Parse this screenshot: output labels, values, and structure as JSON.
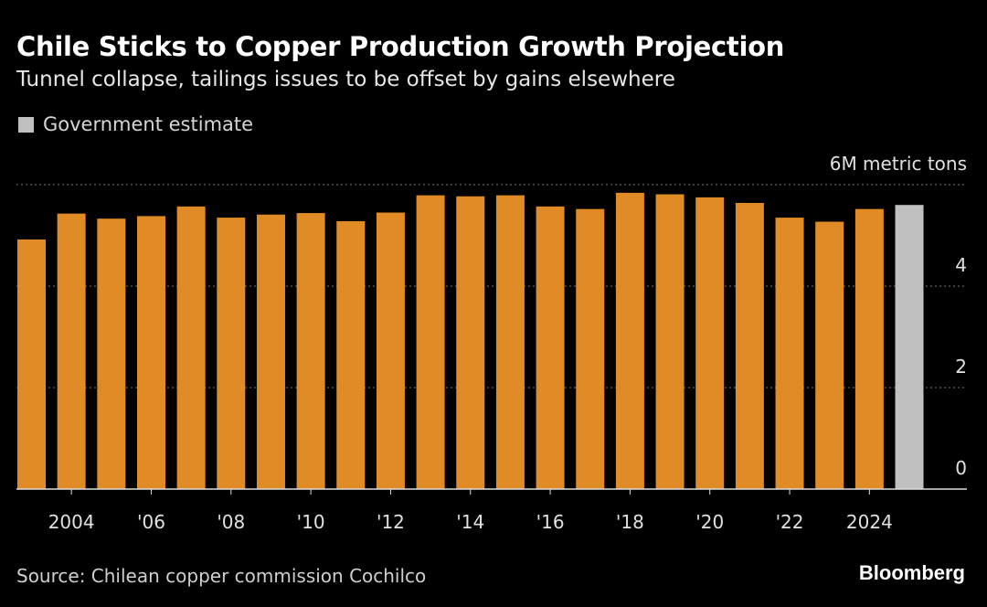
{
  "title": "Chile Sticks to Copper Production Growth Projection",
  "subtitle": "Tunnel collapse, tailings issues to be offset by gains elsewhere",
  "source": "Source: Chilean copper commission Cochilco",
  "logo": "Bloomberg",
  "colors": {
    "actual": "#e08b25",
    "estimate": "#c0c0c0",
    "background": "#000000"
  },
  "chart_data": {
    "type": "bar",
    "title": "Chile Sticks to Copper Production Growth Projection",
    "ylabel": "6M metric tons",
    "unit_label": "6M metric tons",
    "ylim": [
      0,
      6
    ],
    "yticks": [
      0,
      2,
      4,
      6
    ],
    "ytick_labels": [
      "0",
      "2",
      "4",
      ""
    ],
    "legend": [
      {
        "name": "Government estimate",
        "color": "#c0c0c0"
      }
    ],
    "legend_position": "top-left",
    "categories": [
      2003,
      2004,
      2005,
      2006,
      2007,
      2008,
      2009,
      2010,
      2011,
      2012,
      2013,
      2014,
      2015,
      2016,
      2017,
      2018,
      2019,
      2020,
      2021,
      2022,
      2023,
      2024,
      2025
    ],
    "values": [
      4.92,
      5.43,
      5.33,
      5.38,
      5.57,
      5.35,
      5.41,
      5.44,
      5.28,
      5.45,
      5.79,
      5.77,
      5.79,
      5.57,
      5.52,
      5.84,
      5.81,
      5.75,
      5.64,
      5.35,
      5.27,
      5.52,
      5.6
    ],
    "estimate": [
      false,
      false,
      false,
      false,
      false,
      false,
      false,
      false,
      false,
      false,
      false,
      false,
      false,
      false,
      false,
      false,
      false,
      false,
      false,
      false,
      false,
      false,
      true
    ],
    "xtick_labels": [
      {
        "year": 2004,
        "label": "2004"
      },
      {
        "year": 2006,
        "label": "'06"
      },
      {
        "year": 2008,
        "label": "'08"
      },
      {
        "year": 2010,
        "label": "'10"
      },
      {
        "year": 2012,
        "label": "'12"
      },
      {
        "year": 2014,
        "label": "'14"
      },
      {
        "year": 2016,
        "label": "'16"
      },
      {
        "year": 2018,
        "label": "'18"
      },
      {
        "year": 2020,
        "label": "'20"
      },
      {
        "year": 2022,
        "label": "'22"
      },
      {
        "year": 2024,
        "label": "2024"
      }
    ]
  }
}
